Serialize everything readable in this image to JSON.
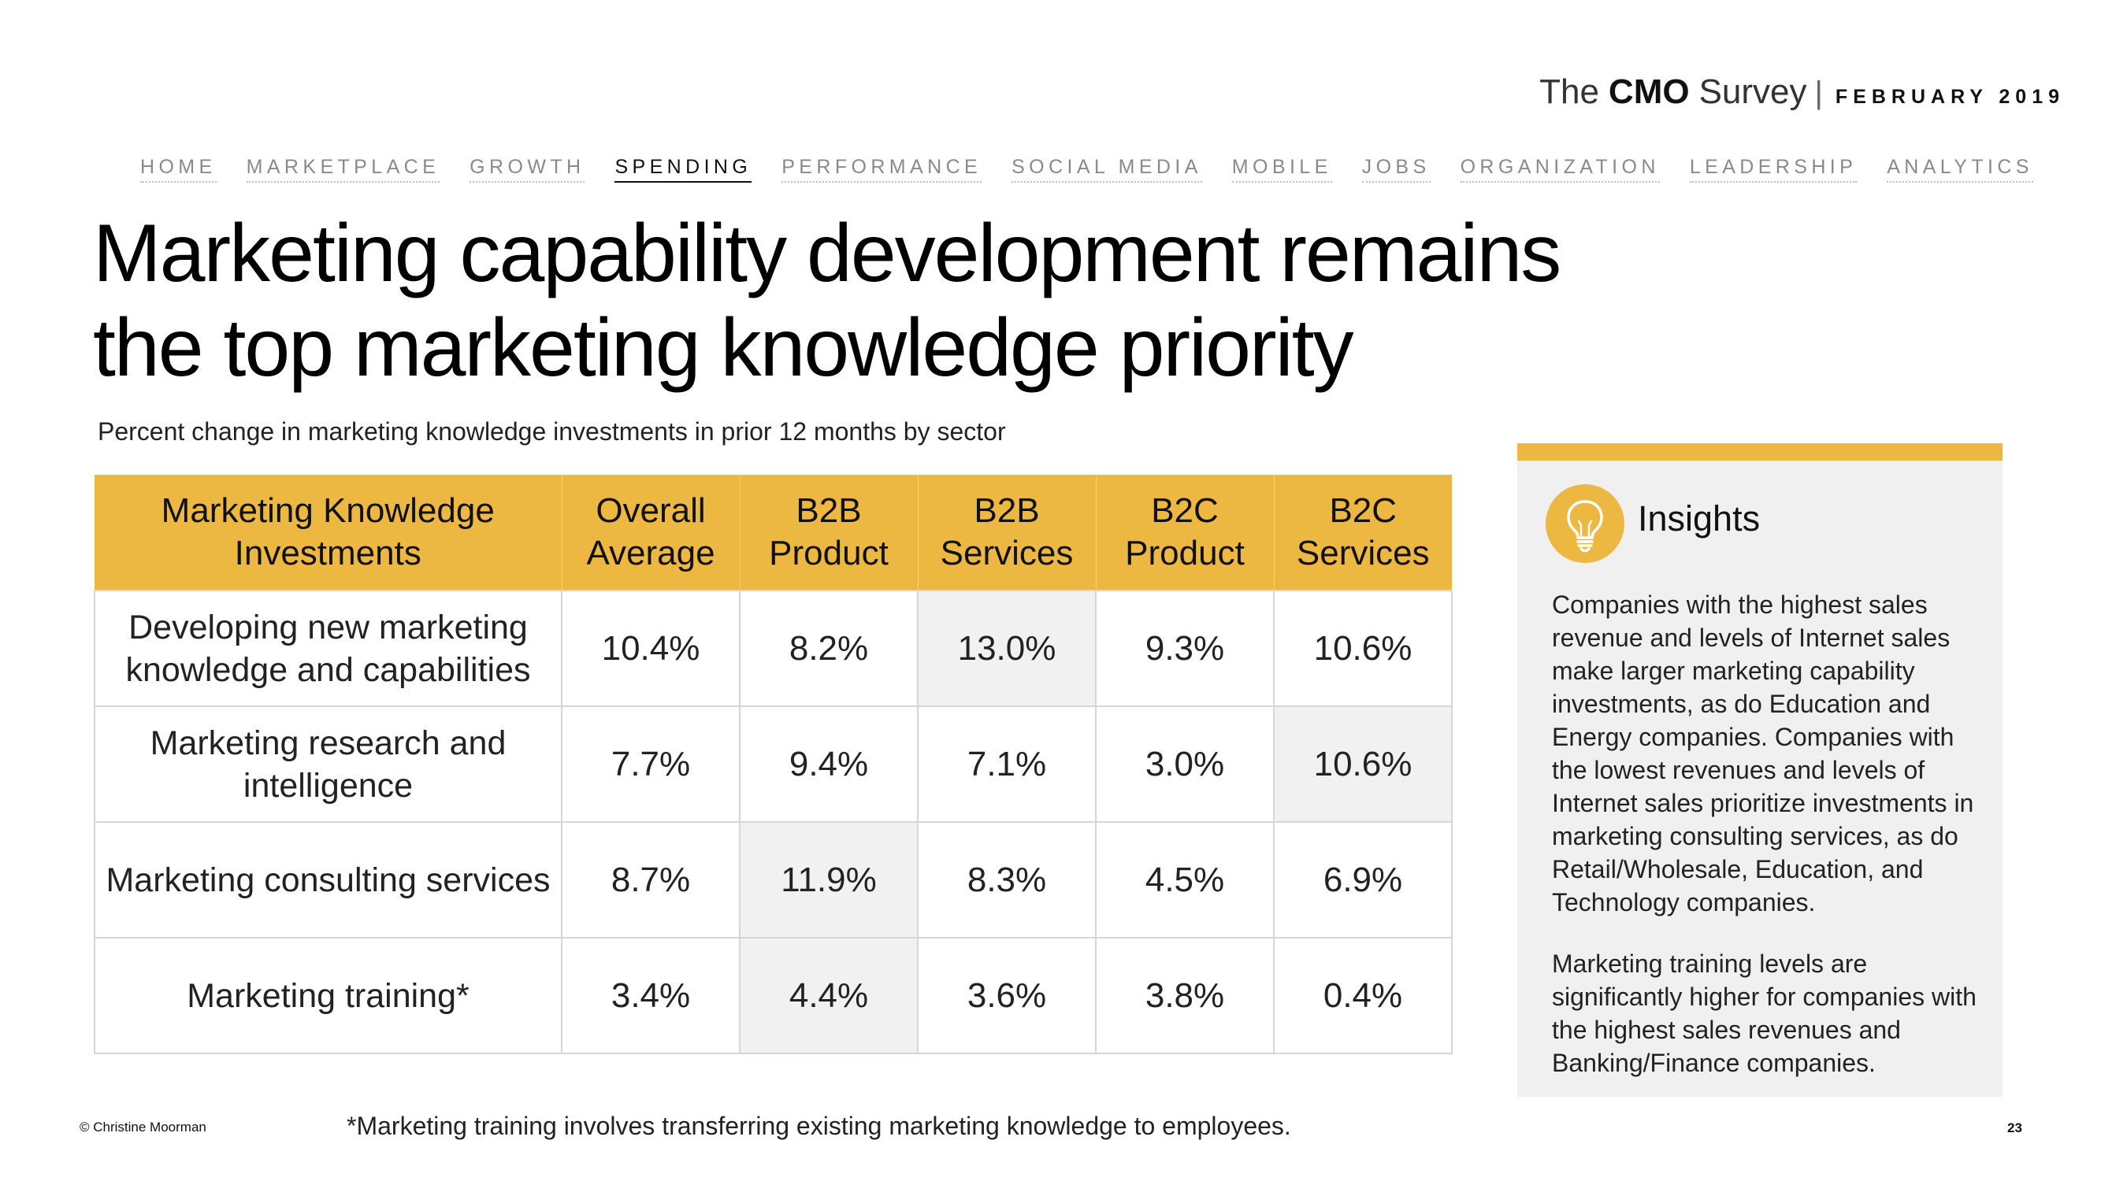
{
  "brand": {
    "the": "The",
    "cmo": "CMO",
    "survey": "Survey",
    "separator": "|",
    "date": "FEBRUARY 2019"
  },
  "nav": {
    "items": [
      "HOME",
      "MARKETPLACE",
      "GROWTH",
      "SPENDING",
      "PERFORMANCE",
      "SOCIAL MEDIA",
      "MOBILE",
      "JOBS",
      "ORGANIZATION",
      "LEADERSHIP",
      "ANALYTICS"
    ],
    "active": "SPENDING"
  },
  "title": "Marketing capability development remains the top marketing knowledge priority",
  "subtitle": "Percent change in marketing knowledge investments in prior 12 months by sector",
  "table": {
    "headers": [
      "Marketing Knowledge Investments",
      "Overall Average",
      "B2B Product",
      "B2B Services",
      "B2C Product",
      "B2C Services"
    ],
    "rows": [
      [
        "Developing new marketing knowledge and capabilities",
        "10.4%",
        "8.2%",
        "13.0%",
        "9.3%",
        "10.6%"
      ],
      [
        "Marketing research and intelligence",
        "7.7%",
        "9.4%",
        "7.1%",
        "3.0%",
        "10.6%"
      ],
      [
        "Marketing consulting services",
        "8.7%",
        "11.9%",
        "8.3%",
        "4.5%",
        "6.9%"
      ],
      [
        "Marketing training*",
        "3.4%",
        "4.4%",
        "3.6%",
        "3.8%",
        "0.4%"
      ]
    ],
    "highlight_color": "#f1f1f1",
    "header_color": "#edb842"
  },
  "insights": {
    "icon": "lightbulb-icon",
    "heading": "Insights",
    "paragraphs": [
      "Companies with the highest sales revenue and levels of Internet sales make larger marketing capability investments, as do Education and Energy companies. Companies with the lowest revenues and levels of Internet sales prioritize investments in marketing consulting services, as do Retail/Wholesale, Education, and Technology companies.",
      "Marketing training levels are significantly higher for companies with the highest sales revenues and Banking/Finance companies."
    ]
  },
  "footer": {
    "copyright": "© Christine Moorman",
    "footnote": "*Marketing training involves transferring existing marketing knowledge to employees.",
    "page_number": "23"
  }
}
